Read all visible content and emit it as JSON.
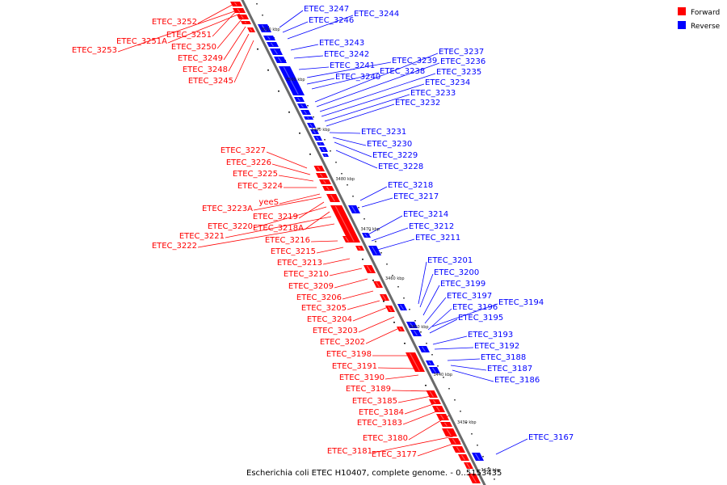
{
  "caption": "Escherichia coli ETEC H10407, complete genome. - 0..5153435",
  "legend": [
    {
      "label": "Forward",
      "color": "#ff0000"
    },
    {
      "label": "Reverse",
      "color": "#0000ff"
    }
  ],
  "ticks": [
    "3510 kbp",
    "3500 kbp",
    "3490 kbp",
    "3480 kbp",
    "3470 kbp",
    "3460 kbp",
    "3450 kbp",
    "3440 kbp",
    "3430 kbp",
    "3420 kbp"
  ],
  "forward_labels": [
    "ETEC_3252",
    "ETEC_3251",
    "ETEC_3251A",
    "ETEC_3250",
    "ETEC_3253",
    "ETEC_3249",
    "ETEC_3248",
    "ETEC_3245",
    "ETEC_3227",
    "ETEC_3226",
    "ETEC_3225",
    "ETEC_3224",
    "yeeS",
    "ETEC_3223A",
    "ETEC_3219",
    "ETEC_3220",
    "ETEC_3218A",
    "ETEC_3221",
    "ETEC_3216",
    "ETEC_3222",
    "ETEC_3215",
    "ETEC_3213",
    "ETEC_3210",
    "ETEC_3209",
    "ETEC_3206",
    "ETEC_3205",
    "ETEC_3204",
    "ETEC_3203",
    "ETEC_3202",
    "ETEC_3198",
    "ETEC_3191",
    "ETEC_3190",
    "ETEC_3189",
    "ETEC_3185",
    "ETEC_3184",
    "ETEC_3183",
    "ETEC_3180",
    "ETEC_3181",
    "ETEC_3177"
  ],
  "reverse_labels": [
    "ETEC_3247",
    "ETEC_3244",
    "ETEC_3246",
    "ETEC_3243",
    "ETEC_3242",
    "ETEC_3241",
    "ETEC_3239",
    "ETEC_3237",
    "ETEC_3236",
    "ETEC_3238",
    "ETEC_3235",
    "ETEC_3240",
    "ETEC_3234",
    "ETEC_3233",
    "ETEC_3232",
    "ETEC_3231",
    "ETEC_3230",
    "ETEC_3229",
    "ETEC_3228",
    "ETEC_3218",
    "ETEC_3217",
    "ETEC_3214",
    "ETEC_3212",
    "ETEC_3211",
    "ETEC_3201",
    "ETEC_3200",
    "ETEC_3199",
    "ETEC_3197",
    "ETEC_3196",
    "ETEC_3194",
    "ETEC_3195",
    "ETEC_3193",
    "ETEC_3192",
    "ETEC_3188",
    "ETEC_3187",
    "ETEC_3186",
    "ETEC_3167"
  ]
}
